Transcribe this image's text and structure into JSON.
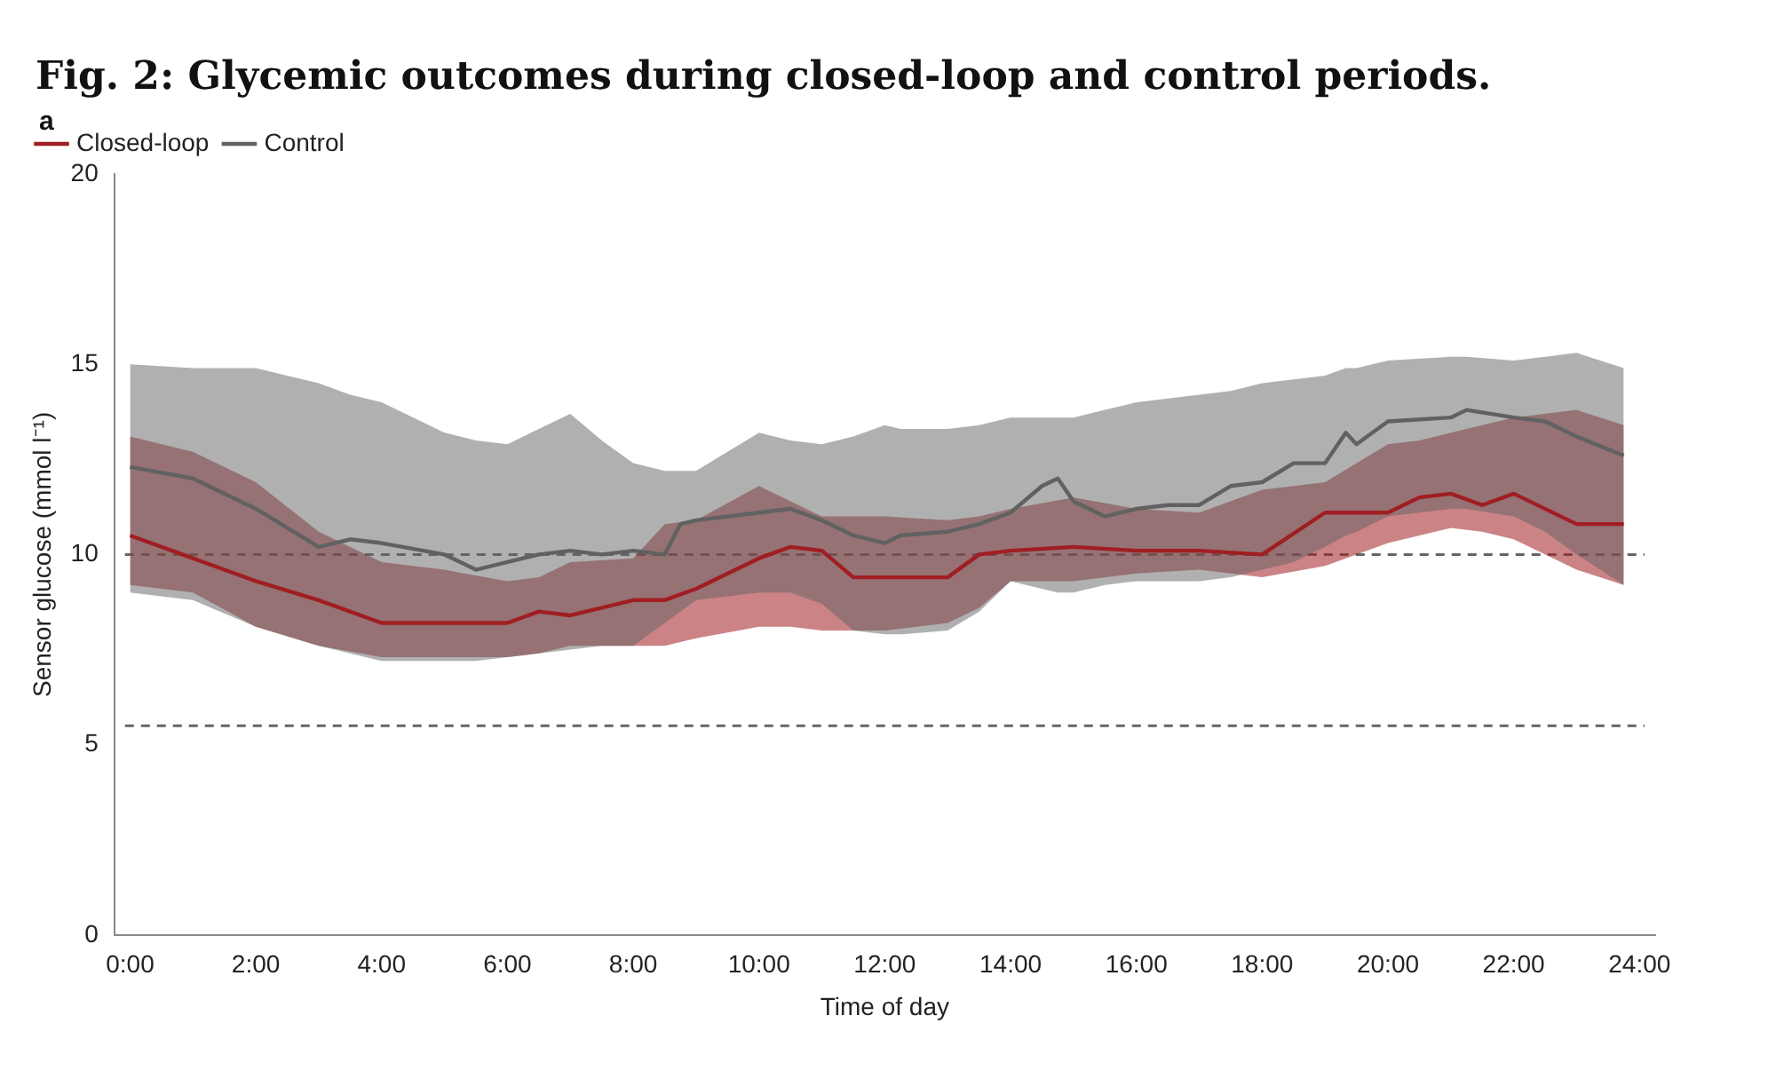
{
  "chart_data": {
    "type": "line",
    "title": "Fig. 2: Glycemic outcomes during closed-loop and control periods.",
    "annotations": [
      "a"
    ],
    "xlabel": "Time of day",
    "ylabel": "Sensor glucose (mmol l⁻¹)",
    "xlim": [
      -0.25,
      24.25
    ],
    "xticks": [
      {
        "value": 0,
        "label": "0:00"
      },
      {
        "value": 2,
        "label": "2:00"
      },
      {
        "value": 4,
        "label": "4:00"
      },
      {
        "value": 6,
        "label": "6:00"
      },
      {
        "value": 8,
        "label": "8:00"
      },
      {
        "value": 10,
        "label": "10:00"
      },
      {
        "value": 12,
        "label": "12:00"
      },
      {
        "value": 14,
        "label": "14:00"
      },
      {
        "value": 16,
        "label": "16:00"
      },
      {
        "value": 18,
        "label": "18:00"
      },
      {
        "value": 20,
        "label": "20:00"
      },
      {
        "value": 22,
        "label": "22:00"
      },
      {
        "value": 24,
        "label": "24:00"
      }
    ],
    "ylim": [
      0,
      20
    ],
    "yticks": [
      0,
      5,
      10,
      15,
      20
    ],
    "grid": false,
    "legend": "top left",
    "marker": "none",
    "line_style": "solid",
    "ref_lines": [
      {
        "axis": "y",
        "value": 10,
        "color": "#666666",
        "line_style": "dashed"
      },
      {
        "axis": "y",
        "value": 5.5,
        "color": "#666666",
        "line_style": "dashed"
      }
    ],
    "series": [
      {
        "name": "Closed-loop",
        "color": "#a01e22",
        "x": [
          0,
          1,
          2,
          3,
          4,
          5,
          6,
          6.5,
          7,
          8,
          8.5,
          9,
          10,
          10.5,
          11,
          11.5,
          12,
          13,
          13.5,
          14,
          15,
          16,
          17,
          18,
          19,
          20,
          20.5,
          21,
          21.5,
          22,
          23,
          23.75
        ],
        "values": [
          10.5,
          9.9,
          9.3,
          8.8,
          8.2,
          8.2,
          8.2,
          8.5,
          8.4,
          8.8,
          8.8,
          9.1,
          9.9,
          10.2,
          10.1,
          9.4,
          9.4,
          9.4,
          10.0,
          10.1,
          10.2,
          10.1,
          10.1,
          10.0,
          11.1,
          11.1,
          11.5,
          11.6,
          11.3,
          11.6,
          10.8,
          10.8
        ],
        "upper": [
          13.1,
          12.7,
          11.9,
          10.6,
          9.8,
          9.6,
          9.3,
          9.4,
          9.8,
          9.9,
          10.8,
          10.9,
          11.8,
          11.4,
          11.0,
          11.0,
          11.0,
          10.9,
          11.0,
          11.2,
          11.5,
          11.2,
          11.1,
          11.7,
          11.9,
          12.9,
          13.0,
          13.2,
          13.4,
          13.6,
          13.8,
          13.4
        ],
        "lower": [
          9.2,
          9.0,
          8.1,
          7.6,
          7.3,
          7.3,
          7.3,
          7.4,
          7.6,
          7.6,
          7.6,
          7.8,
          8.1,
          8.1,
          8.0,
          8.0,
          8.0,
          8.2,
          8.6,
          9.3,
          9.3,
          9.5,
          9.6,
          9.4,
          9.7,
          10.3,
          10.5,
          10.7,
          10.6,
          10.4,
          9.6,
          9.2
        ]
      },
      {
        "name": "Control",
        "color": "#616161",
        "x": [
          0,
          1,
          2,
          3,
          3.5,
          4,
          5,
          5.5,
          6,
          6.5,
          7,
          7.5,
          8,
          8.5,
          8.75,
          9,
          10,
          10.5,
          11,
          11.5,
          12,
          12.25,
          13,
          13.5,
          14,
          14.5,
          14.75,
          15,
          15.5,
          16,
          16.5,
          17,
          17.5,
          18,
          18.5,
          19,
          19.33,
          19.5,
          20,
          21,
          21.25,
          22,
          22.5,
          23,
          23.75
        ],
        "values": [
          12.3,
          12.0,
          11.2,
          10.2,
          10.4,
          10.3,
          10.0,
          9.6,
          9.8,
          10.0,
          10.1,
          10.0,
          10.1,
          10.0,
          10.8,
          10.9,
          11.1,
          11.2,
          10.9,
          10.5,
          10.3,
          10.5,
          10.6,
          10.8,
          11.1,
          11.8,
          12.0,
          11.4,
          11.0,
          11.2,
          11.3,
          11.3,
          11.8,
          11.9,
          12.4,
          12.4,
          13.2,
          12.9,
          13.5,
          13.6,
          13.8,
          13.6,
          13.5,
          13.1,
          12.6
        ],
        "upper": [
          15.0,
          14.9,
          14.9,
          14.5,
          14.2,
          14.0,
          13.2,
          13.0,
          12.9,
          13.3,
          13.7,
          13.0,
          12.4,
          12.2,
          12.2,
          12.2,
          13.2,
          13.0,
          12.9,
          13.1,
          13.4,
          13.3,
          13.3,
          13.4,
          13.6,
          13.6,
          13.6,
          13.6,
          13.8,
          14.0,
          14.1,
          14.2,
          14.3,
          14.5,
          14.6,
          14.7,
          14.9,
          14.9,
          15.1,
          15.2,
          15.2,
          15.1,
          15.2,
          15.3,
          14.9
        ],
        "lower": [
          9.0,
          8.8,
          8.1,
          7.6,
          7.4,
          7.2,
          7.2,
          7.2,
          7.3,
          7.4,
          7.5,
          7.6,
          7.6,
          8.2,
          8.5,
          8.8,
          9.0,
          9.0,
          8.7,
          8.0,
          7.9,
          7.9,
          8.0,
          8.5,
          9.3,
          9.1,
          9.0,
          9.0,
          9.2,
          9.3,
          9.3,
          9.3,
          9.4,
          9.6,
          9.8,
          10.2,
          10.5,
          10.6,
          11.0,
          11.2,
          11.2,
          11.0,
          10.6,
          10.0,
          9.2
        ]
      }
    ]
  }
}
